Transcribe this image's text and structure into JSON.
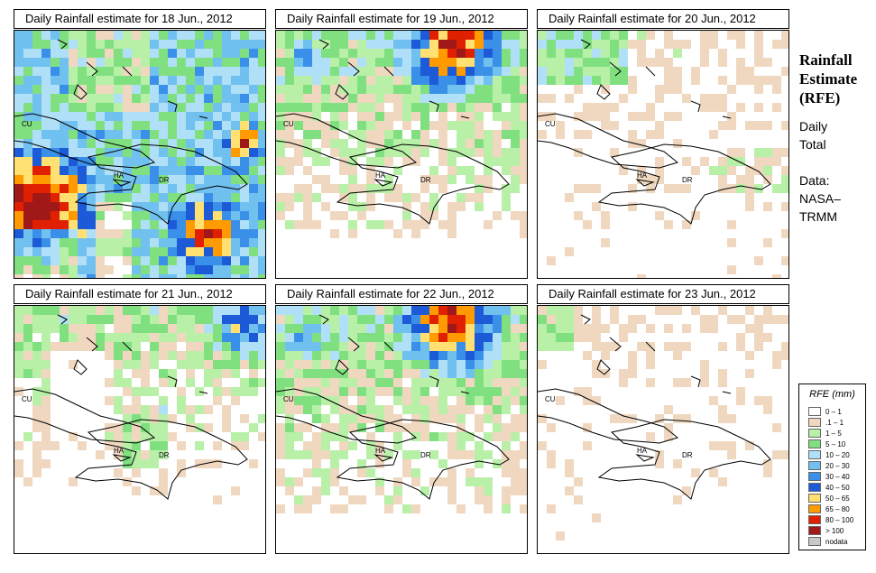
{
  "panels": [
    {
      "title": "Daily Rainfall estimate for  18 Jun., 2012",
      "intensity": "heavy"
    },
    {
      "title": "Daily Rainfall estimate for  19 Jun., 2012",
      "intensity": "heavy-north"
    },
    {
      "title": "Daily Rainfall estimate for  20 Jun., 2012",
      "intensity": "light"
    },
    {
      "title": "Daily Rainfall estimate for  21 Jun., 2012",
      "intensity": "moderate-north"
    },
    {
      "title": "Daily Rainfall estimate for  22 Jun., 2012",
      "intensity": "heavy-north"
    },
    {
      "title": "Daily Rainfall estimate for  23 Jun., 2012",
      "intensity": "very-light"
    }
  ],
  "map_labels": {
    "cuba": "CU",
    "haiti": "HA",
    "dominican_republic": "DR"
  },
  "side": {
    "title_lines": [
      "Rainfall",
      "Estimate",
      "(RFE)"
    ],
    "daily_total": [
      "Daily",
      "Total"
    ],
    "data_source": [
      "Data:",
      "NASA–",
      "TRMM"
    ]
  },
  "legend": {
    "title": "RFE (mm)",
    "items": [
      {
        "label": "0 – 1",
        "color": "#ffffff"
      },
      {
        "label": ".1 – 1",
        "color": "#f0d8c0"
      },
      {
        "label": "1 – 5",
        "color": "#b8f0a8"
      },
      {
        "label": "5 – 10",
        "color": "#80e080"
      },
      {
        "label": "10 – 20",
        "color": "#b0e0f8"
      },
      {
        "label": "20 – 30",
        "color": "#70c0f0"
      },
      {
        "label": "30 – 40",
        "color": "#3a90e8"
      },
      {
        "label": "40 – 50",
        "color": "#1c5ad8"
      },
      {
        "label": "50 – 65",
        "color": "#ffe070"
      },
      {
        "label": "65 – 80",
        "color": "#ff9a00"
      },
      {
        "label": "80 – 100",
        "color": "#e02000"
      },
      {
        "label": "> 100",
        "color": "#a01818"
      },
      {
        "label": "nodata",
        "color": "#c8c8c8"
      }
    ]
  }
}
